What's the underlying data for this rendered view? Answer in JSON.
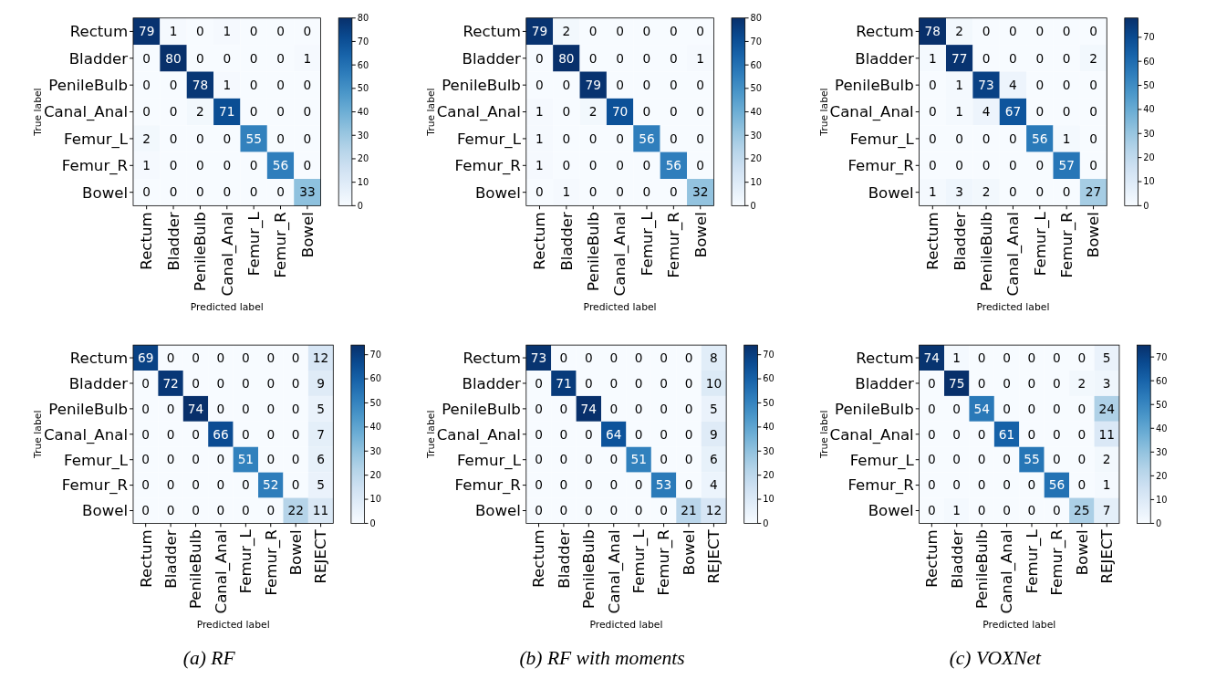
{
  "chart_data": [
    {
      "type": "heatmap",
      "xlabel": "Predicted label",
      "ylabel": "True label",
      "categories": [
        "Rectum",
        "Bladder",
        "PenileBulb",
        "Canal_Anal",
        "Femur_L",
        "Femur_R",
        "Bowel"
      ],
      "y_categories": [
        "Rectum",
        "Bladder",
        "PenileBulb",
        "Canal_Anal",
        "Femur_L",
        "Femur_R",
        "Bowel"
      ],
      "cells": [
        [
          79,
          1,
          0,
          1,
          0,
          0,
          0
        ],
        [
          0,
          80,
          0,
          0,
          0,
          0,
          1
        ],
        [
          0,
          0,
          78,
          1,
          0,
          0,
          0
        ],
        [
          0,
          0,
          2,
          71,
          0,
          0,
          0
        ],
        [
          2,
          0,
          0,
          0,
          55,
          0,
          0
        ],
        [
          1,
          0,
          0,
          0,
          0,
          56,
          0
        ],
        [
          0,
          0,
          0,
          0,
          0,
          0,
          33
        ]
      ],
      "clim": [
        0,
        80
      ],
      "cticks": [
        0,
        10,
        20,
        30,
        40,
        50,
        60,
        70,
        80
      ],
      "data_labels": true
    },
    {
      "type": "heatmap",
      "xlabel": "Predicted label",
      "ylabel": "True label",
      "categories": [
        "Rectum",
        "Bladder",
        "PenileBulb",
        "Canal_Anal",
        "Femur_L",
        "Femur_R",
        "Bowel"
      ],
      "y_categories": [
        "Rectum",
        "Bladder",
        "PenileBulb",
        "Canal_Anal",
        "Femur_L",
        "Femur_R",
        "Bowel"
      ],
      "cells": [
        [
          79,
          2,
          0,
          0,
          0,
          0,
          0
        ],
        [
          0,
          80,
          0,
          0,
          0,
          0,
          1
        ],
        [
          0,
          0,
          79,
          0,
          0,
          0,
          0
        ],
        [
          1,
          0,
          2,
          70,
          0,
          0,
          0
        ],
        [
          1,
          0,
          0,
          0,
          56,
          0,
          0
        ],
        [
          1,
          0,
          0,
          0,
          0,
          56,
          0
        ],
        [
          0,
          1,
          0,
          0,
          0,
          0,
          32
        ]
      ],
      "clim": [
        0,
        80
      ],
      "cticks": [
        0,
        10,
        20,
        30,
        40,
        50,
        60,
        70,
        80
      ],
      "data_labels": true
    },
    {
      "type": "heatmap",
      "xlabel": "Predicted label",
      "ylabel": "True label",
      "categories": [
        "Rectum",
        "Bladder",
        "PenileBulb",
        "Canal_Anal",
        "Femur_L",
        "Femur_R",
        "Bowel"
      ],
      "y_categories": [
        "Rectum",
        "Bladder",
        "PenileBulb",
        "Canal_Anal",
        "Femur_L",
        "Femur_R",
        "Bowel"
      ],
      "cells": [
        [
          78,
          2,
          0,
          0,
          0,
          0,
          0
        ],
        [
          1,
          77,
          0,
          0,
          0,
          0,
          2
        ],
        [
          0,
          1,
          73,
          4,
          0,
          0,
          0
        ],
        [
          0,
          1,
          4,
          67,
          0,
          0,
          0
        ],
        [
          0,
          0,
          0,
          0,
          56,
          1,
          0
        ],
        [
          0,
          0,
          0,
          0,
          0,
          57,
          0
        ],
        [
          1,
          3,
          2,
          0,
          0,
          0,
          27
        ]
      ],
      "clim": [
        0,
        78
      ],
      "cticks": [
        0,
        10,
        20,
        30,
        40,
        50,
        60,
        70
      ],
      "data_labels": true
    },
    {
      "type": "heatmap",
      "xlabel": "Predicted label",
      "ylabel": "True label",
      "annotations": [
        "(a) RF"
      ],
      "categories": [
        "Rectum",
        "Bladder",
        "PenileBulb",
        "Canal_Anal",
        "Femur_L",
        "Femur_R",
        "Bowel",
        "REJECT"
      ],
      "y_categories": [
        "Rectum",
        "Bladder",
        "PenileBulb",
        "Canal_Anal",
        "Femur_L",
        "Femur_R",
        "Bowel"
      ],
      "cells": [
        [
          69,
          0,
          0,
          0,
          0,
          0,
          0,
          12
        ],
        [
          0,
          72,
          0,
          0,
          0,
          0,
          0,
          9
        ],
        [
          0,
          0,
          74,
          0,
          0,
          0,
          0,
          5
        ],
        [
          0,
          0,
          0,
          66,
          0,
          0,
          0,
          7
        ],
        [
          0,
          0,
          0,
          0,
          51,
          0,
          0,
          6
        ],
        [
          0,
          0,
          0,
          0,
          0,
          52,
          0,
          5
        ],
        [
          0,
          0,
          0,
          0,
          0,
          0,
          22,
          11
        ]
      ],
      "clim": [
        0,
        74
      ],
      "cticks": [
        0,
        10,
        20,
        30,
        40,
        50,
        60,
        70
      ],
      "data_labels": true
    },
    {
      "type": "heatmap",
      "xlabel": "Predicted label",
      "ylabel": "True label",
      "annotations": [
        "(b) RF with moments"
      ],
      "categories": [
        "Rectum",
        "Bladder",
        "PenileBulb",
        "Canal_Anal",
        "Femur_L",
        "Femur_R",
        "Bowel",
        "REJECT"
      ],
      "y_categories": [
        "Rectum",
        "Bladder",
        "PenileBulb",
        "Canal_Anal",
        "Femur_L",
        "Femur_R",
        "Bowel"
      ],
      "cells": [
        [
          73,
          0,
          0,
          0,
          0,
          0,
          0,
          8
        ],
        [
          0,
          71,
          0,
          0,
          0,
          0,
          0,
          10
        ],
        [
          0,
          0,
          74,
          0,
          0,
          0,
          0,
          5
        ],
        [
          0,
          0,
          0,
          64,
          0,
          0,
          0,
          9
        ],
        [
          0,
          0,
          0,
          0,
          51,
          0,
          0,
          6
        ],
        [
          0,
          0,
          0,
          0,
          0,
          53,
          0,
          4
        ],
        [
          0,
          0,
          0,
          0,
          0,
          0,
          21,
          12
        ]
      ],
      "clim": [
        0,
        74
      ],
      "cticks": [
        0,
        10,
        20,
        30,
        40,
        50,
        60,
        70
      ],
      "data_labels": true
    },
    {
      "type": "heatmap",
      "xlabel": "Predicted label",
      "ylabel": "True label",
      "annotations": [
        "(c) VOXNet"
      ],
      "categories": [
        "Rectum",
        "Bladder",
        "PenileBulb",
        "Canal_Anal",
        "Femur_L",
        "Femur_R",
        "Bowel",
        "REJECT"
      ],
      "y_categories": [
        "Rectum",
        "Bladder",
        "PenileBulb",
        "Canal_Anal",
        "Femur_L",
        "Femur_R",
        "Bowel"
      ],
      "cells": [
        [
          74,
          1,
          0,
          0,
          0,
          0,
          0,
          5
        ],
        [
          0,
          75,
          0,
          0,
          0,
          0,
          2,
          3
        ],
        [
          0,
          0,
          54,
          0,
          0,
          0,
          0,
          24
        ],
        [
          0,
          0,
          0,
          61,
          0,
          0,
          0,
          11
        ],
        [
          0,
          0,
          0,
          0,
          55,
          0,
          0,
          2
        ],
        [
          0,
          0,
          0,
          0,
          0,
          56,
          0,
          1
        ],
        [
          0,
          1,
          0,
          0,
          0,
          0,
          25,
          7
        ]
      ],
      "clim": [
        0,
        75
      ],
      "cticks": [
        0,
        10,
        20,
        30,
        40,
        50,
        60,
        70
      ],
      "data_labels": true
    }
  ]
}
